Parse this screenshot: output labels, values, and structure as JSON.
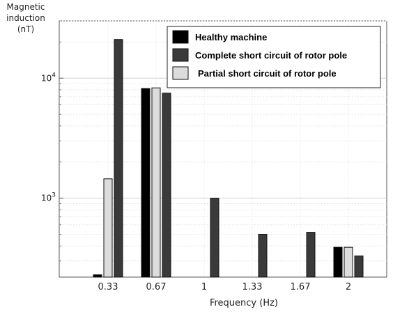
{
  "chart_data": {
    "type": "bar",
    "ylabel_lines": [
      "Magnetic",
      "induction",
      "(nT)"
    ],
    "xlabel": "Frequency (Hz)",
    "categories": [
      "0.33",
      "0.67",
      "1",
      "1.33",
      "1.67",
      "2"
    ],
    "y_scale": "log",
    "ylim": [
      220,
      30000
    ],
    "y_major_ticks": [
      {
        "base": "10",
        "exp": "3",
        "value": 1000
      },
      {
        "base": "10",
        "exp": "4",
        "value": 10000
      }
    ],
    "grid": true,
    "legend_position": "top-right",
    "series": [
      {
        "name": "Healthy machine",
        "color": "#000000",
        "values": [
          230,
          8200,
          null,
          null,
          null,
          390
        ]
      },
      {
        "name": "Partial short circuit of rotor pole",
        "color": "#dcdcdc",
        "values": [
          1450,
          8300,
          null,
          null,
          null,
          390
        ]
      },
      {
        "name": "Complete short circuit of rotor pole",
        "color": "#3a3a3a",
        "values": [
          21000,
          7500,
          1000,
          500,
          520,
          330
        ]
      }
    ],
    "legend_order": [
      0,
      2,
      1
    ]
  }
}
